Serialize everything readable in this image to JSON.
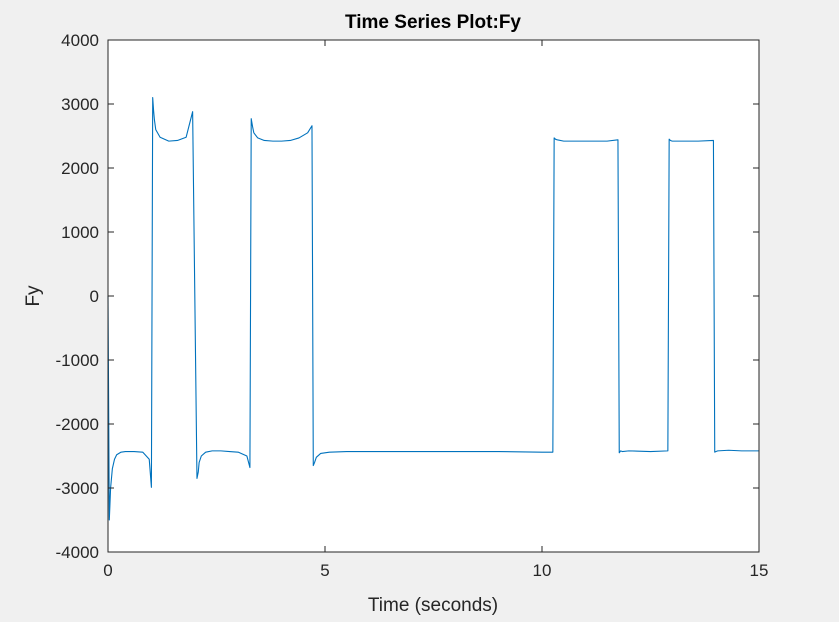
{
  "chart_data": {
    "type": "line",
    "title": "Time Series Plot:Fy",
    "xlabel": "Time (seconds)",
    "ylabel": "Fy",
    "xlim": [
      0,
      15
    ],
    "ylim": [
      -4000,
      4000
    ],
    "xticks": [
      0,
      5,
      10,
      15
    ],
    "xtick_labels": [
      "0",
      "5",
      "10",
      "15"
    ],
    "yticks": [
      4000,
      3000,
      2000,
      1000,
      0,
      -1000,
      -2000,
      -3000,
      -4000
    ],
    "ytick_labels": [
      "4000",
      "3000",
      "2000",
      "1000",
      "0",
      "-1000",
      "-2000",
      "-3000",
      "-4000"
    ],
    "grid": false,
    "legend": "none",
    "colors": {
      "line": "#0072bd",
      "axes_bg": "#ffffff",
      "figure_bg": "#f0f0f0",
      "axis": "#262626"
    },
    "series": [
      {
        "x": [
          0,
          0.03,
          0.06,
          0.1,
          0.15,
          0.2,
          0.3,
          0.4,
          0.6,
          0.8,
          0.95,
          1.0,
          1.03,
          1.05,
          1.07,
          1.1,
          1.2,
          1.4,
          1.6,
          1.8,
          1.95,
          2.05,
          2.08,
          2.1,
          2.15,
          2.25,
          2.4,
          2.6,
          2.8,
          3.0,
          3.2,
          3.27,
          3.3,
          3.33,
          3.36,
          3.45,
          3.6,
          3.8,
          4.0,
          4.2,
          4.4,
          4.6,
          4.7,
          4.73,
          4.76,
          4.8,
          4.9,
          5.1,
          5.5,
          6,
          7,
          8,
          9,
          10,
          10.25,
          10.28,
          10.31,
          10.35,
          10.5,
          11,
          11.5,
          11.75,
          11.78,
          11.81,
          11.85,
          12,
          12.5,
          12.9,
          12.93,
          12.96,
          13.0,
          13.2,
          13.6,
          13.95,
          13.98,
          14.01,
          14.05,
          14.3,
          14.6,
          15.0
        ],
        "y": [
          0,
          -3500,
          -3000,
          -2700,
          -2550,
          -2480,
          -2440,
          -2430,
          -2430,
          -2440,
          -2550,
          -2990,
          3100,
          2900,
          2750,
          2600,
          2480,
          2420,
          2430,
          2480,
          2880,
          -2850,
          -2750,
          -2600,
          -2500,
          -2440,
          -2420,
          -2420,
          -2430,
          -2440,
          -2500,
          -2680,
          2770,
          2650,
          2550,
          2470,
          2430,
          2420,
          2420,
          2430,
          2470,
          2550,
          2660,
          -2650,
          -2600,
          -2520,
          -2460,
          -2440,
          -2430,
          -2430,
          -2430,
          -2430,
          -2430,
          -2440,
          -2440,
          2470,
          2450,
          2440,
          2420,
          2420,
          2420,
          2440,
          -2450,
          -2420,
          -2430,
          -2420,
          -2430,
          -2420,
          2450,
          2430,
          2420,
          2420,
          2420,
          2430,
          -2440,
          -2430,
          -2420,
          -2410,
          -2420,
          -2420
        ]
      }
    ]
  }
}
